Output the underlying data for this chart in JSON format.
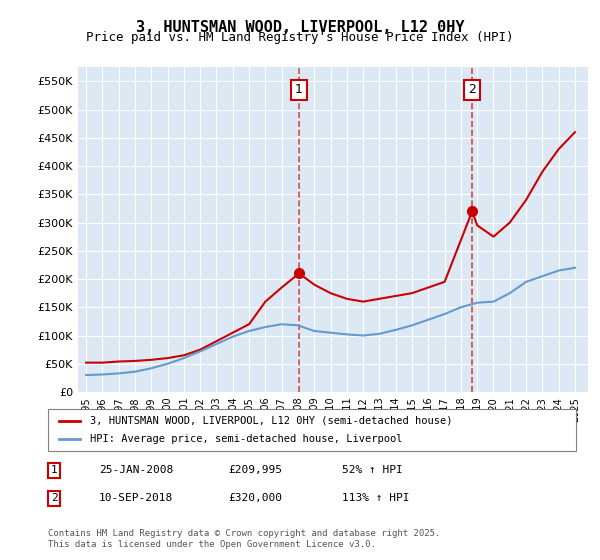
{
  "title": "3, HUNTSMAN WOOD, LIVERPOOL, L12 0HY",
  "subtitle": "Price paid vs. HM Land Registry's House Price Index (HPI)",
  "title_fontsize": 11,
  "subtitle_fontsize": 9,
  "background_color": "#ffffff",
  "plot_bg_color": "#dce9f5",
  "grid_color": "#ffffff",
  "ylabel_ticks": [
    "£0",
    "£50K",
    "£100K",
    "£150K",
    "£200K",
    "£250K",
    "£300K",
    "£350K",
    "£400K",
    "£450K",
    "£500K",
    "£550K"
  ],
  "ytick_values": [
    0,
    50000,
    100000,
    150000,
    200000,
    250000,
    300000,
    350000,
    400000,
    450000,
    500000,
    550000
  ],
  "ylim": [
    0,
    575000
  ],
  "xlim_start": 1994.5,
  "xlim_end": 2025.8,
  "xtick_years": [
    1995,
    1996,
    1997,
    1998,
    1999,
    2000,
    2001,
    2002,
    2003,
    2004,
    2005,
    2006,
    2007,
    2008,
    2009,
    2010,
    2011,
    2012,
    2013,
    2014,
    2015,
    2016,
    2017,
    2018,
    2019,
    2020,
    2021,
    2022,
    2023,
    2024,
    2025
  ],
  "red_line_color": "#cc0000",
  "blue_line_color": "#6699cc",
  "vline_color": "#cc0000",
  "vline_style": "--",
  "vline_alpha": 0.7,
  "marker1_year": 2008.07,
  "marker1_value": 209995,
  "marker2_year": 2018.69,
  "marker2_value": 320000,
  "annotation1_label": "1",
  "annotation2_label": "2",
  "legend_label_red": "3, HUNTSMAN WOOD, LIVERPOOL, L12 0HY (semi-detached house)",
  "legend_label_blue": "HPI: Average price, semi-detached house, Liverpool",
  "table_rows": [
    {
      "num": "1",
      "date": "25-JAN-2008",
      "price": "£209,995",
      "hpi": "52% ↑ HPI"
    },
    {
      "num": "2",
      "date": "10-SEP-2018",
      "price": "£320,000",
      "hpi": "113% ↑ HPI"
    }
  ],
  "footnote": "Contains HM Land Registry data © Crown copyright and database right 2025.\nThis data is licensed under the Open Government Licence v3.0.",
  "red_years": [
    1995,
    1996,
    1997,
    1998,
    1999,
    2000,
    2001,
    2002,
    2003,
    2004,
    2005,
    2006,
    2007,
    2008.07,
    2009,
    2010,
    2011,
    2012,
    2013,
    2014,
    2015,
    2016,
    2017,
    2018.69,
    2019,
    2020,
    2021,
    2022,
    2023,
    2024,
    2025
  ],
  "red_values": [
    52000,
    52000,
    54000,
    55000,
    57000,
    60000,
    65000,
    75000,
    90000,
    105000,
    120000,
    160000,
    185000,
    209995,
    190000,
    175000,
    165000,
    160000,
    165000,
    170000,
    175000,
    185000,
    195000,
    320000,
    295000,
    275000,
    300000,
    340000,
    390000,
    430000,
    460000
  ],
  "blue_years": [
    1995,
    1996,
    1997,
    1998,
    1999,
    2000,
    2001,
    2002,
    2003,
    2004,
    2005,
    2006,
    2007,
    2008,
    2009,
    2010,
    2011,
    2012,
    2013,
    2014,
    2015,
    2016,
    2017,
    2018,
    2019,
    2020,
    2021,
    2022,
    2023,
    2024,
    2025
  ],
  "blue_values": [
    30000,
    31000,
    33000,
    36000,
    42000,
    50000,
    60000,
    72000,
    85000,
    98000,
    108000,
    115000,
    120000,
    118000,
    108000,
    105000,
    102000,
    100000,
    103000,
    110000,
    118000,
    128000,
    138000,
    150000,
    158000,
    160000,
    175000,
    195000,
    205000,
    215000,
    220000
  ]
}
